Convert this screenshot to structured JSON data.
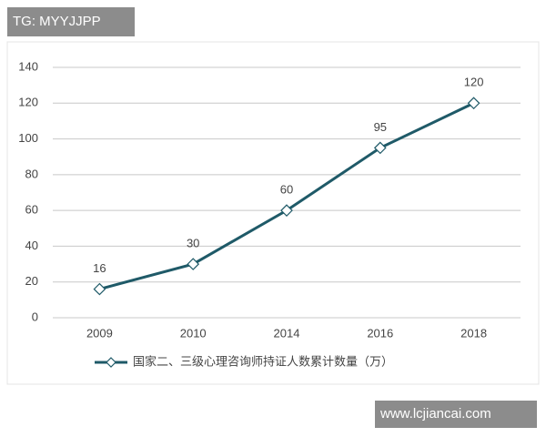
{
  "watermarks": {
    "top": "TG: MYYJJPP",
    "bottom": "www.lcjiancai.com"
  },
  "chart_data": {
    "type": "line",
    "categories": [
      "2009",
      "2010",
      "2014",
      "2016",
      "2018"
    ],
    "series": [
      {
        "name": "国家二、三级心理咨询师持证人数累计数量（万）",
        "color": "#1f5a68",
        "values": [
          16,
          30,
          60,
          95,
          120
        ]
      }
    ],
    "ylim": [
      0,
      140
    ],
    "yticks": [
      0,
      20,
      40,
      60,
      80,
      100,
      120,
      140
    ],
    "grid": true,
    "legend": "bottom"
  }
}
